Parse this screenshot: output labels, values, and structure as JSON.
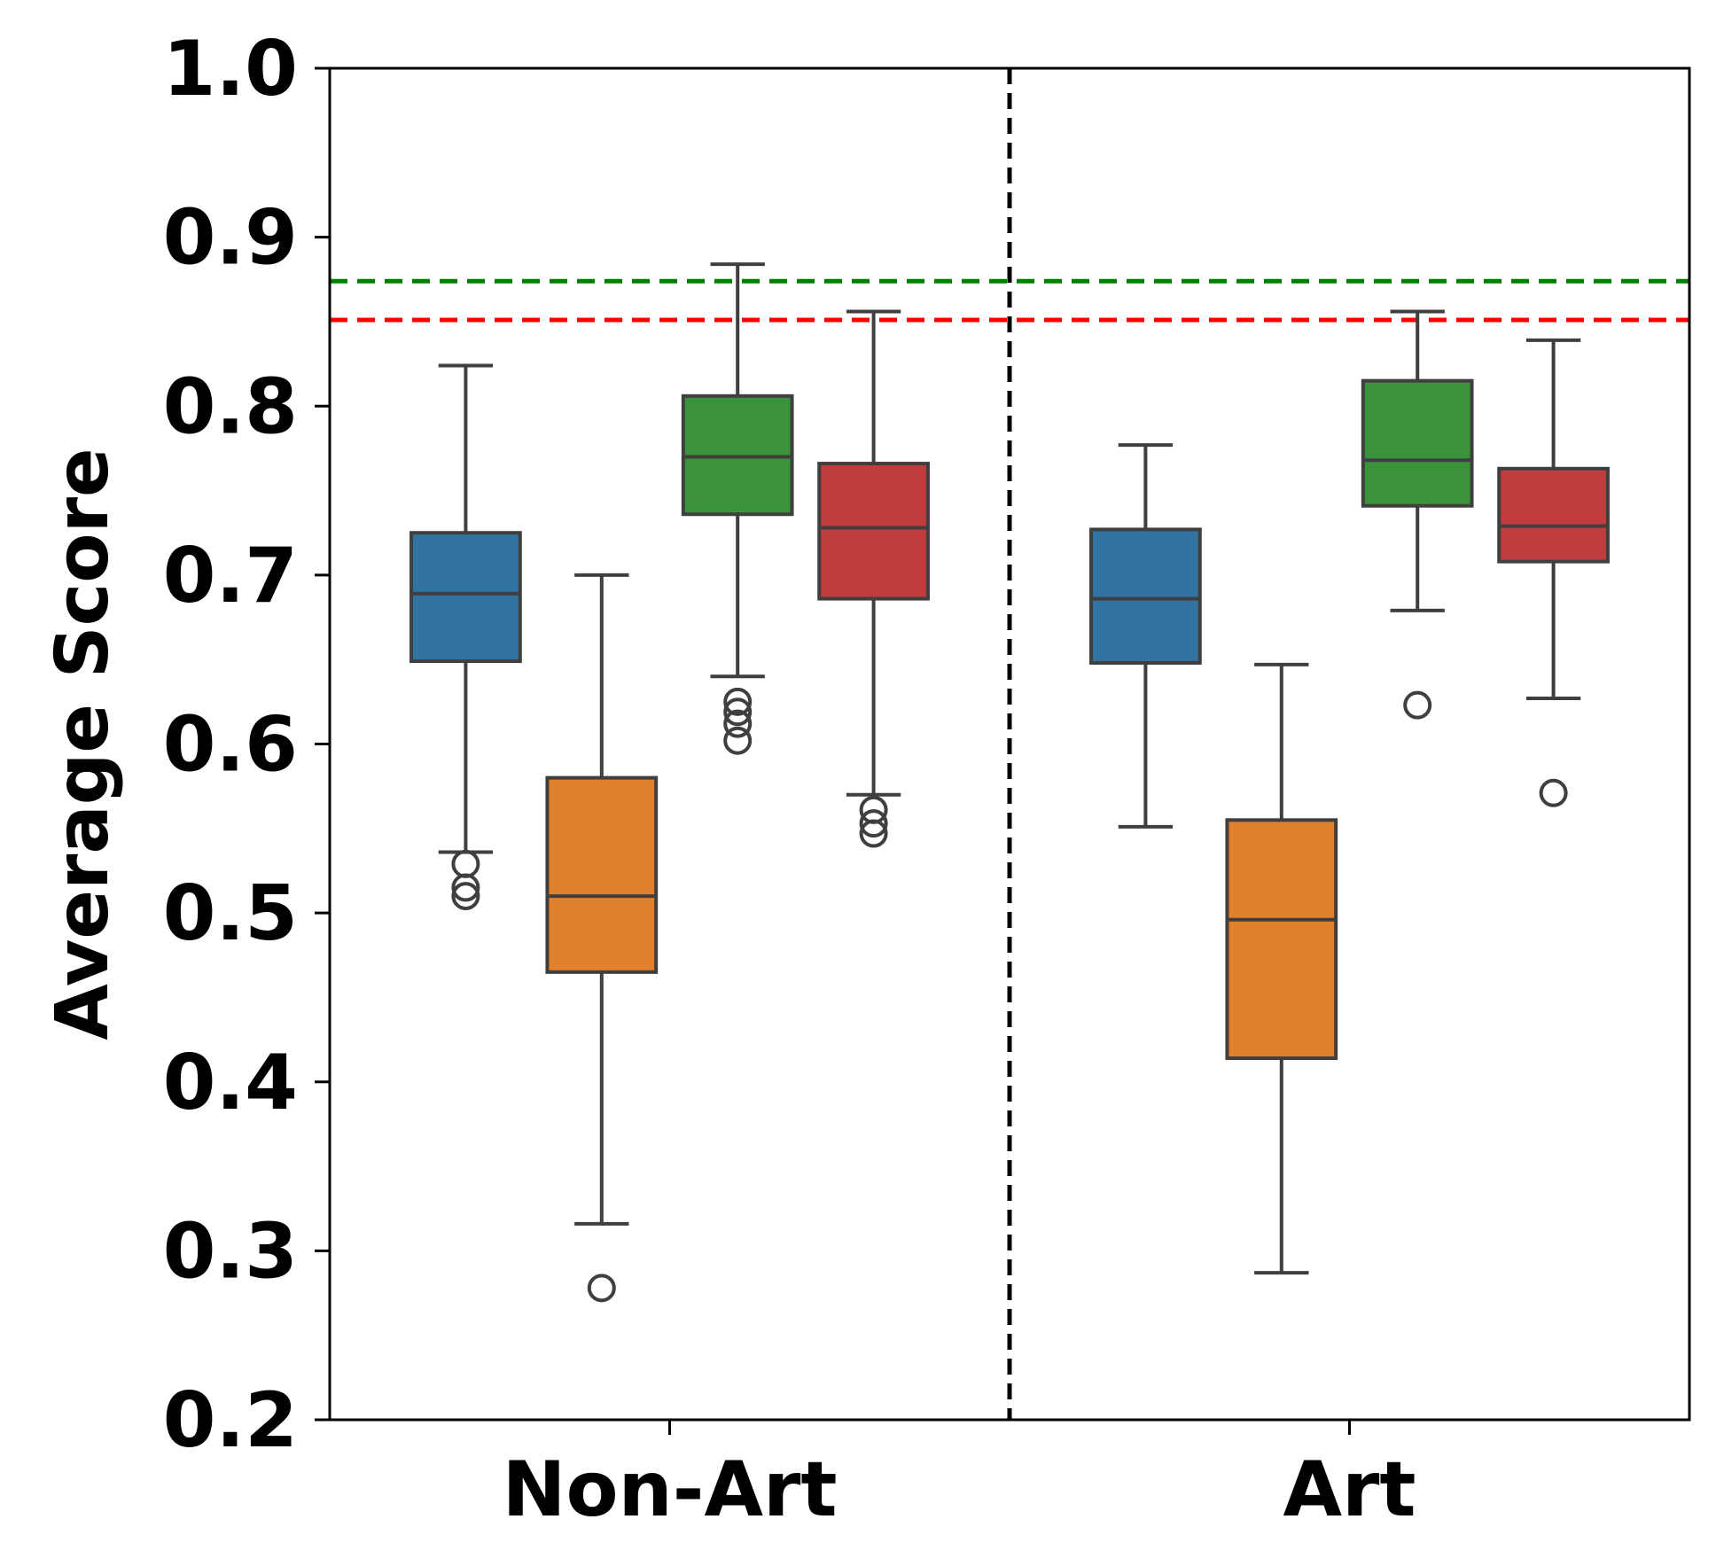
{
  "chart_data": {
    "type": "box",
    "ylabel": "Average Score",
    "ylim": [
      0.2,
      1.0
    ],
    "yticks": [
      "0.2",
      "0.3",
      "0.4",
      "0.5",
      "0.6",
      "0.7",
      "0.8",
      "0.9",
      "1.0"
    ],
    "categories": [
      "Non-Art",
      "Art"
    ],
    "grid": false,
    "legend": "none",
    "group_divider": "dashed black vertical line between categories",
    "reference_lines": [
      {
        "value": 0.874,
        "color": "#008000",
        "style": "dashed"
      },
      {
        "value": 0.851,
        "color": "#ff0000",
        "style": "dashed"
      }
    ],
    "series": [
      {
        "color": "#3274a1",
        "boxes": [
          {
            "category": "Non-Art",
            "whisker_low": 0.536,
            "q1": 0.649,
            "median": 0.689,
            "q3": 0.725,
            "whisker_high": 0.824,
            "outliers": [
              0.529,
              0.515,
              0.51
            ]
          },
          {
            "category": "Art",
            "whisker_low": 0.551,
            "q1": 0.648,
            "median": 0.686,
            "q3": 0.727,
            "whisker_high": 0.777,
            "outliers": []
          }
        ]
      },
      {
        "color": "#e1812c",
        "boxes": [
          {
            "category": "Non-Art",
            "whisker_low": 0.316,
            "q1": 0.465,
            "median": 0.51,
            "q3": 0.58,
            "whisker_high": 0.7,
            "outliers": [
              0.278
            ]
          },
          {
            "category": "Art",
            "whisker_low": 0.287,
            "q1": 0.414,
            "median": 0.496,
            "q3": 0.555,
            "whisker_high": 0.647,
            "outliers": []
          }
        ]
      },
      {
        "color": "#3a923a",
        "boxes": [
          {
            "category": "Non-Art",
            "whisker_low": 0.64,
            "q1": 0.736,
            "median": 0.77,
            "q3": 0.806,
            "whisker_high": 0.884,
            "outliers": [
              0.625,
              0.619,
              0.612,
              0.602
            ]
          },
          {
            "category": "Art",
            "whisker_low": 0.679,
            "q1": 0.741,
            "median": 0.768,
            "q3": 0.815,
            "whisker_high": 0.856,
            "outliers": [
              0.623
            ]
          }
        ]
      },
      {
        "color": "#c03d3e",
        "boxes": [
          {
            "category": "Non-Art",
            "whisker_low": 0.57,
            "q1": 0.686,
            "median": 0.728,
            "q3": 0.766,
            "whisker_high": 0.856,
            "outliers": [
              0.561,
              0.553,
              0.547
            ]
          },
          {
            "category": "Art",
            "whisker_low": 0.627,
            "q1": 0.708,
            "median": 0.729,
            "q3": 0.763,
            "whisker_high": 0.839,
            "outliers": [
              0.571
            ]
          }
        ]
      }
    ]
  }
}
